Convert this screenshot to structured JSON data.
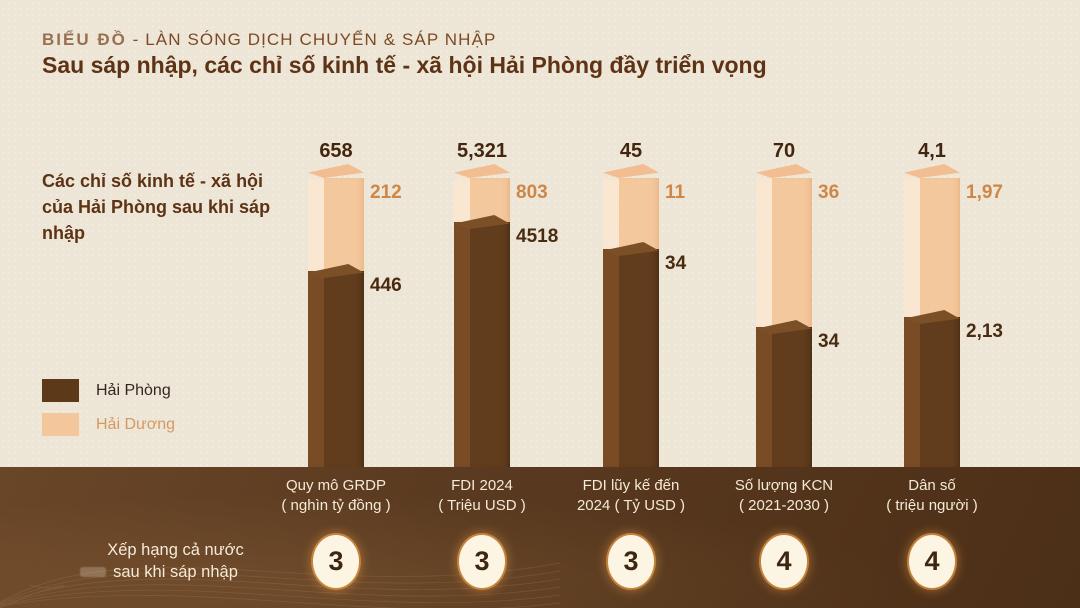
{
  "page": {
    "background": "#ede5d6",
    "band_color": "#5a3a20"
  },
  "header": {
    "series_prefix": "BIỂU ĐỒ",
    "series_rest": " - LÀN SÓNG DỊCH CHUYỂN & SÁP NHẬP",
    "title": "Sau sáp nhập, các chỉ số kinh tế - xã hội Hải Phòng đầy triển vọng"
  },
  "intro": {
    "text": "Các chỉ số kinh tế - xã hội của Hải Phòng sau khi sáp nhập"
  },
  "legend": {
    "items": [
      {
        "label": "Hải Phòng",
        "swatch_color": "#5b3919",
        "label_color": "#33281f"
      },
      {
        "label": "Hải Dương",
        "swatch_color": "#f4c69c",
        "label_color": "#d59a62"
      }
    ]
  },
  "chart_data": {
    "type": "bar",
    "subtype": "100%-stacked 3D columns, per-segment value labels, no value axis",
    "orientation": "vertical",
    "grid": "off",
    "legend_position": "middle-left",
    "categories": [
      "Quy mô GRDP ( nghìn tỷ đồng )",
      "FDI 2024 ( Triệu USD )",
      "FDI lũy kế đến 2024 ( Tỷ USD )",
      "Số lượng KCN ( 2021-2030 )",
      "Dân số ( triệu người )"
    ],
    "category_lines": [
      [
        "Quy mô GRDP",
        "( nghìn tỷ đồng )"
      ],
      [
        "FDI 2024",
        "( Triệu USD )"
      ],
      [
        "FDI lũy kế đến",
        "2024 ( Tỷ USD )"
      ],
      [
        "Số lượng KCN",
        "( 2021-2030 )"
      ],
      [
        "Dân số",
        "( triệu người )"
      ]
    ],
    "series": [
      {
        "name": "Hải Phòng",
        "color": "#623d1d",
        "values": [
          446,
          4518,
          34,
          34,
          2.13
        ],
        "labels": [
          "446",
          "4518",
          "34",
          "34",
          "2,13"
        ]
      },
      {
        "name": "Hải Dương",
        "color": "#f4c69c",
        "values": [
          212,
          803,
          11,
          36,
          1.97
        ],
        "labels": [
          "212",
          "803",
          "11",
          "36",
          "1,97"
        ]
      }
    ],
    "totals": {
      "values": [
        658,
        5321,
        45,
        70,
        4.1
      ],
      "labels": [
        "658",
        "5,321",
        "45",
        "70",
        "4,1"
      ]
    },
    "ranks": [
      "3",
      "3",
      "3",
      "4",
      "4"
    ]
  },
  "footer": {
    "rank_caption_line1": "Xếp hạng cả nước",
    "rank_caption_line2": "sau khi sáp nhập"
  }
}
